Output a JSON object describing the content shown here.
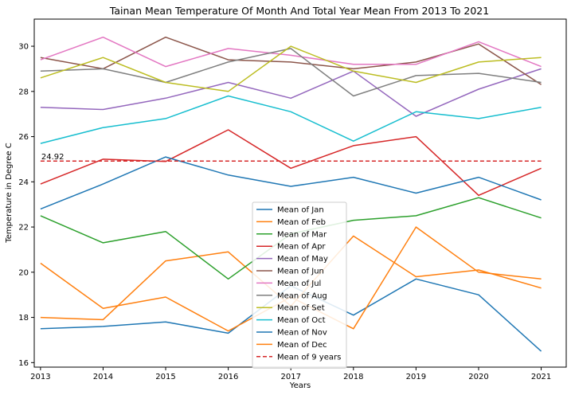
{
  "chart_data": {
    "type": "line",
    "title": "Tainan Mean Temperature Of Month And Total Year Mean From 2013 To 2021",
    "xlabel": "Years",
    "ylabel": "Temperature in Degree C",
    "x": [
      2013,
      2014,
      2015,
      2016,
      2017,
      2018,
      2019,
      2020,
      2021
    ],
    "xlim": [
      2012.9,
      2021.4
    ],
    "ylim": [
      15.8,
      31.2
    ],
    "yticks": [
      16,
      18,
      20,
      22,
      24,
      26,
      28,
      30
    ],
    "legend": "lower-center",
    "grid": false,
    "series": [
      {
        "name": "Mean of Jan",
        "color": "#1f77b4",
        "dash": false,
        "values": [
          17.5,
          17.6,
          17.8,
          17.3,
          19.4,
          18.1,
          19.7,
          19.0,
          16.5
        ]
      },
      {
        "name": "Mean of Feb",
        "color": "#ff7f0e",
        "dash": false,
        "values": [
          18.0,
          17.9,
          20.5,
          20.9,
          18.5,
          21.6,
          19.8,
          20.1,
          19.3
        ]
      },
      {
        "name": "Mean of Mar",
        "color": "#2ca02c",
        "dash": false,
        "values": [
          22.5,
          21.3,
          21.8,
          19.7,
          21.7,
          22.3,
          22.5,
          23.3,
          22.4
        ]
      },
      {
        "name": "Mean of Apr",
        "color": "#d62728",
        "dash": false,
        "values": [
          23.9,
          25.0,
          24.9,
          26.3,
          24.6,
          25.6,
          26.0,
          23.4,
          24.6
        ]
      },
      {
        "name": "Mean of May",
        "color": "#9467bd",
        "dash": false,
        "values": [
          27.3,
          27.2,
          27.7,
          28.4,
          27.7,
          28.9,
          26.9,
          28.1,
          29.0
        ]
      },
      {
        "name": "Mean of Jun",
        "color": "#8c564b",
        "dash": false,
        "values": [
          29.5,
          29.0,
          30.4,
          29.4,
          29.3,
          29.0,
          29.3,
          30.1,
          28.3
        ]
      },
      {
        "name": "Mean of Jul",
        "color": "#e377c2",
        "dash": false,
        "values": [
          29.4,
          30.4,
          29.1,
          29.9,
          29.6,
          29.2,
          29.2,
          30.2,
          29.1
        ]
      },
      {
        "name": "Mean of Aug",
        "color": "#7f7f7f",
        "dash": false,
        "values": [
          28.9,
          29.0,
          28.4,
          29.3,
          29.9,
          27.8,
          28.7,
          28.8,
          28.4
        ]
      },
      {
        "name": "Mean of Set",
        "color": "#bcbd22",
        "dash": false,
        "values": [
          28.6,
          29.5,
          28.4,
          28.0,
          30.0,
          28.9,
          28.4,
          29.3,
          29.5
        ]
      },
      {
        "name": "Mean of Oct",
        "color": "#17becf",
        "dash": false,
        "values": [
          25.7,
          26.4,
          26.8,
          27.8,
          27.1,
          25.8,
          27.1,
          26.8,
          27.3
        ]
      },
      {
        "name": "Mean of Nov",
        "color": "#1f77b4",
        "dash": false,
        "values": [
          22.8,
          23.9,
          25.1,
          24.3,
          23.8,
          24.2,
          23.5,
          24.2,
          23.2
        ]
      },
      {
        "name": "Mean of Dec",
        "color": "#ff7f0e",
        "dash": false,
        "values": [
          20.4,
          18.4,
          18.9,
          17.4,
          18.9,
          17.5,
          22.0,
          20.0,
          19.7
        ]
      },
      {
        "name": "Mean of 9 years",
        "color": "#d62728",
        "dash": true,
        "values": [
          24.92,
          24.92,
          24.92,
          24.92,
          24.92,
          24.92,
          24.92,
          24.92,
          24.92
        ]
      }
    ],
    "annotations": [
      {
        "text": "24.92",
        "x": 2013,
        "y": 24.92
      }
    ]
  }
}
